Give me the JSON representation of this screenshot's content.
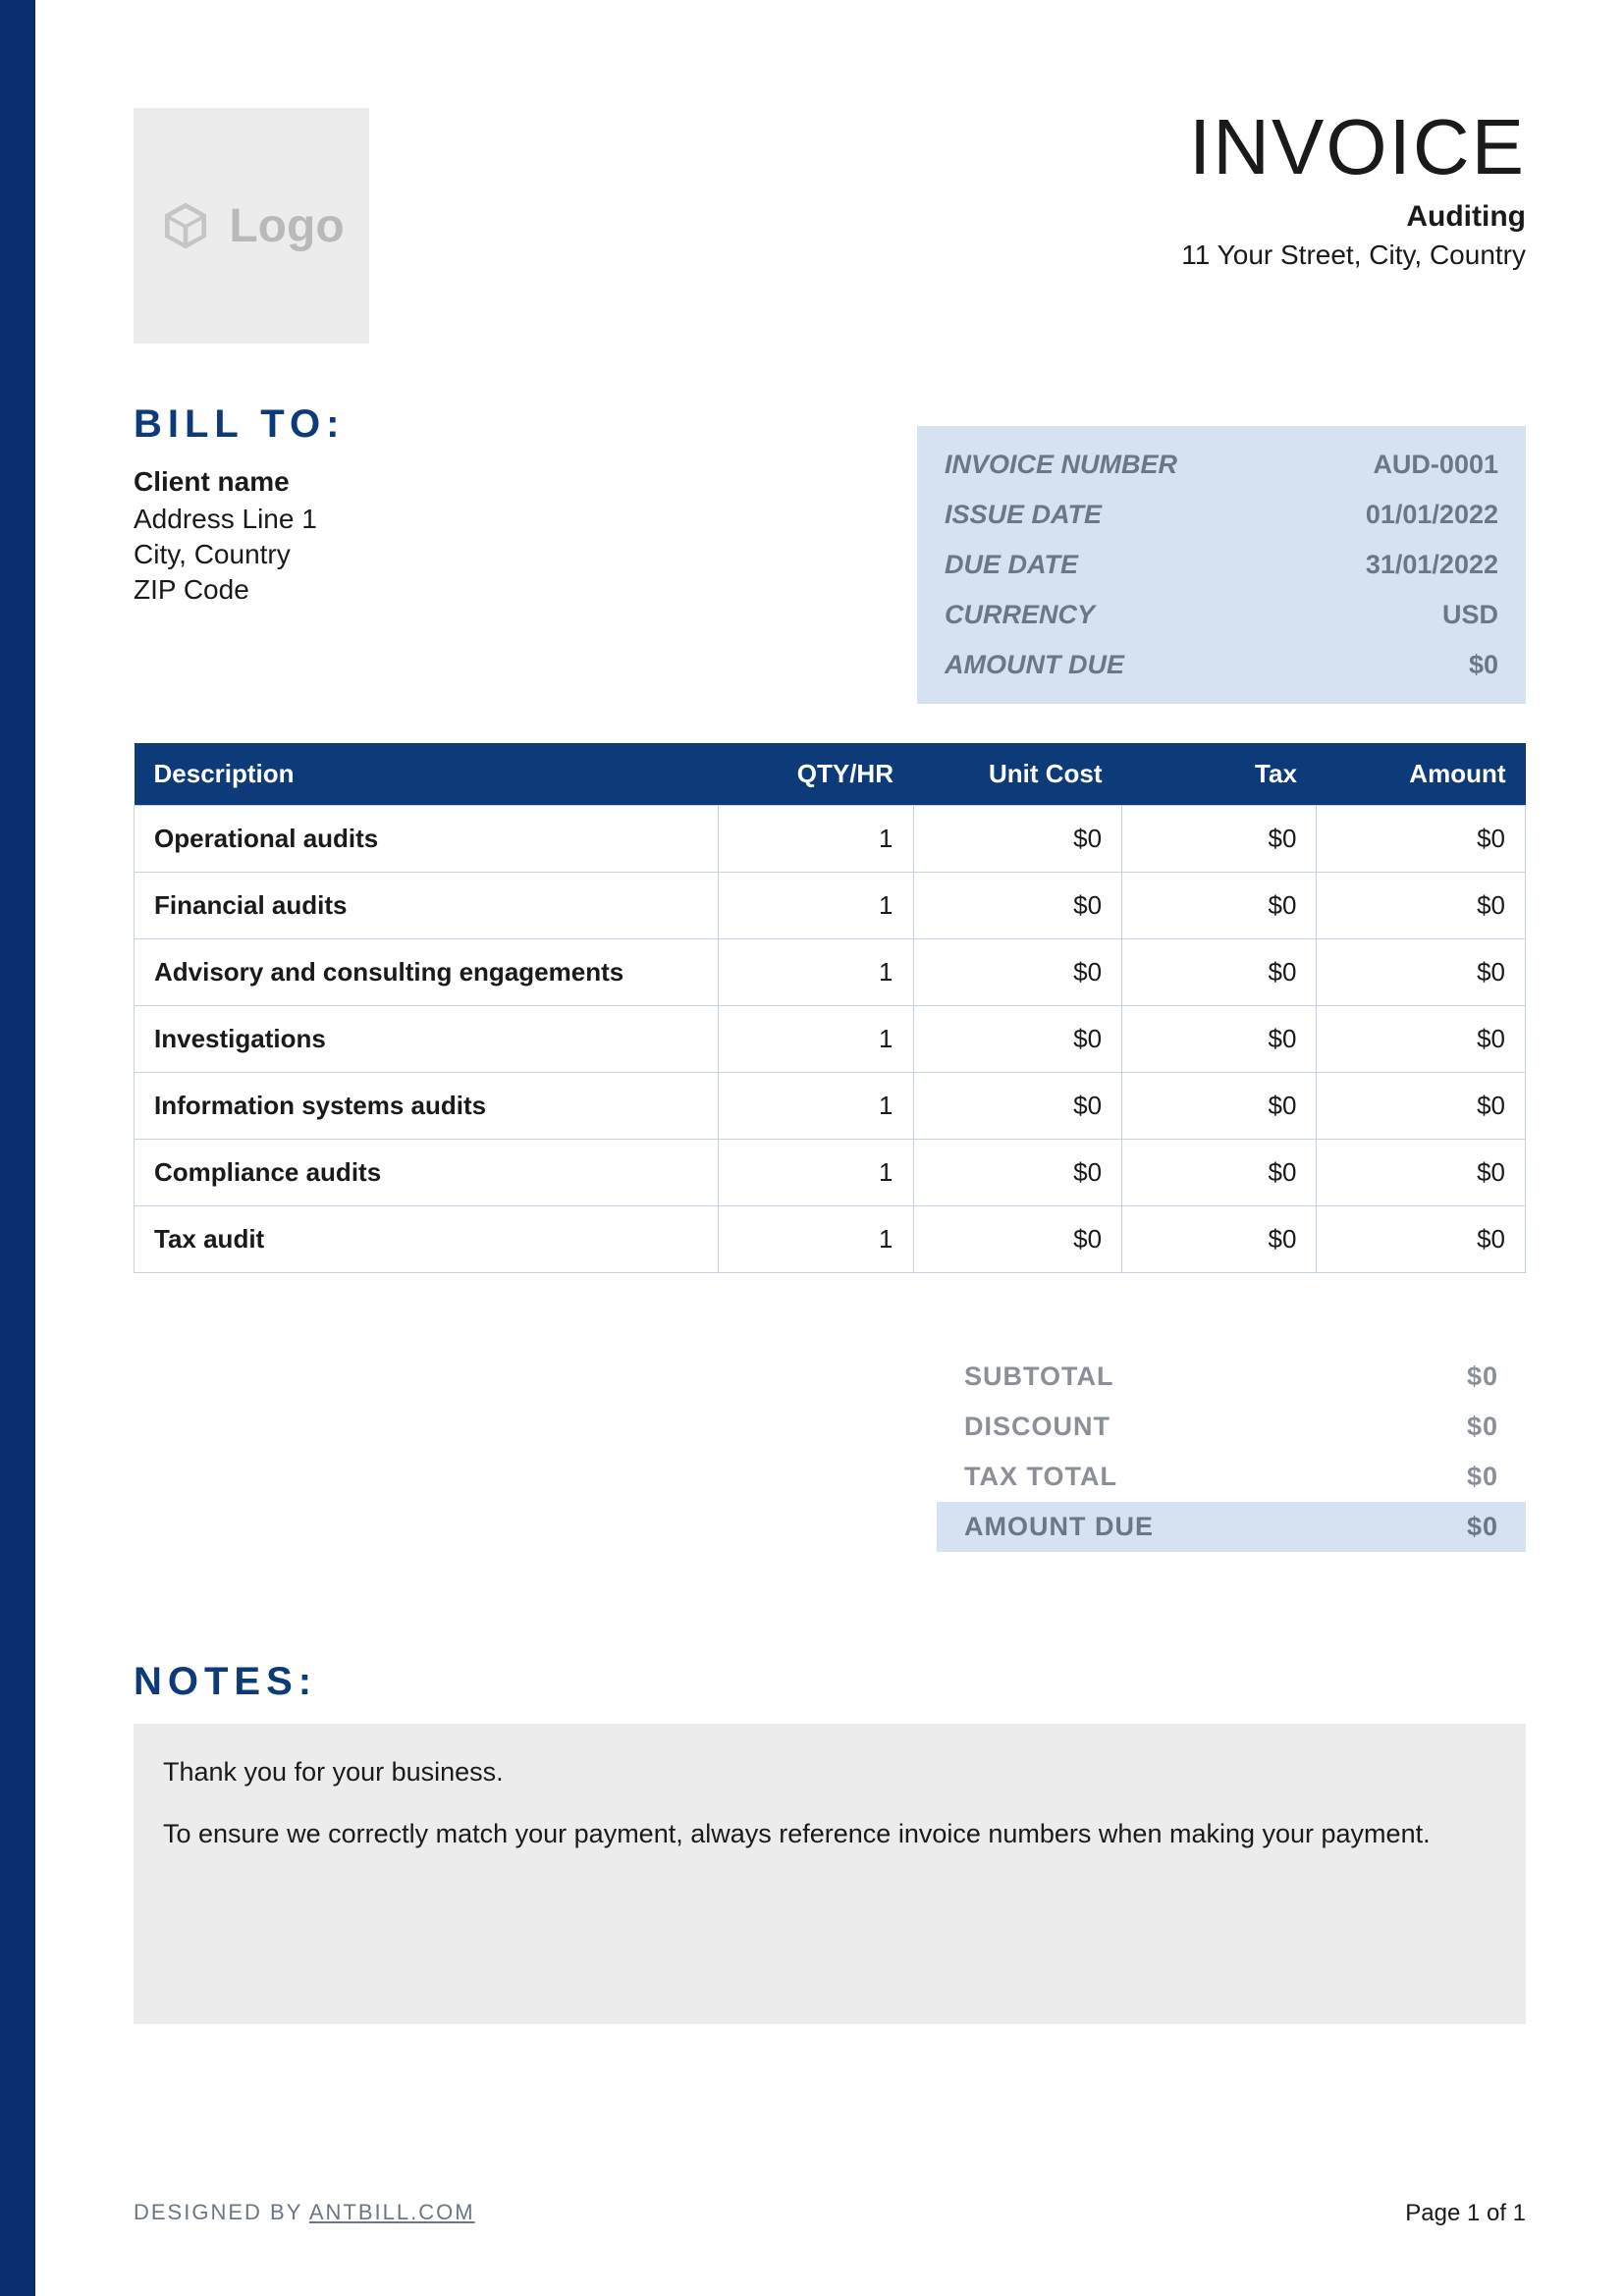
{
  "colors": {
    "accent_bar": "#0b2e6f",
    "header_dark": "#0d3b7a",
    "meta_bg": "#d6e2f1",
    "notes_bg": "#ececec",
    "table_border": "#c5d3e6",
    "muted_text": "#6b7785",
    "totals_text": "#8a8f98",
    "body_text": "#1a1a1a",
    "logo_bg": "#ececec",
    "logo_fg": "#b9b9b9"
  },
  "header": {
    "logo_text": "Logo",
    "title": "INVOICE",
    "company": "Auditing",
    "address": "11 Your Street, City, Country"
  },
  "bill_to": {
    "heading": "BILL TO:",
    "client_name": "Client name",
    "lines": [
      "Address Line 1",
      "City, Country",
      "ZIP Code"
    ]
  },
  "meta": {
    "rows": [
      {
        "label": "INVOICE NUMBER",
        "value": "AUD-0001"
      },
      {
        "label": "ISSUE DATE",
        "value": "01/01/2022"
      },
      {
        "label": "DUE DATE",
        "value": "31/01/2022"
      },
      {
        "label": "CURRENCY",
        "value": "USD"
      },
      {
        "label": "AMOUNT DUE",
        "value": "$0"
      }
    ]
  },
  "table": {
    "columns": [
      "Description",
      "QTY/HR",
      "Unit Cost",
      "Tax",
      "Amount"
    ],
    "column_widths_pct": [
      42,
      14,
      15,
      14,
      15
    ],
    "rows": [
      {
        "desc": "Operational audits",
        "qty": "1",
        "unit": "$0",
        "tax": "$0",
        "amount": "$0"
      },
      {
        "desc": "Financial audits",
        "qty": "1",
        "unit": "$0",
        "tax": "$0",
        "amount": "$0"
      },
      {
        "desc": "Advisory and consulting engagements",
        "qty": "1",
        "unit": "$0",
        "tax": "$0",
        "amount": "$0"
      },
      {
        "desc": "Investigations",
        "qty": "1",
        "unit": "$0",
        "tax": "$0",
        "amount": "$0"
      },
      {
        "desc": "Information systems audits",
        "qty": "1",
        "unit": "$0",
        "tax": "$0",
        "amount": "$0"
      },
      {
        "desc": "Compliance audits",
        "qty": "1",
        "unit": "$0",
        "tax": "$0",
        "amount": "$0"
      },
      {
        "desc": "Tax audit",
        "qty": "1",
        "unit": "$0",
        "tax": "$0",
        "amount": "$0"
      }
    ]
  },
  "totals": {
    "lines": [
      {
        "label": "SUBTOTAL",
        "value": "$0",
        "highlight": false
      },
      {
        "label": "DISCOUNT",
        "value": "$0",
        "highlight": false
      },
      {
        "label": "TAX TOTAL",
        "value": "$0",
        "highlight": false
      },
      {
        "label": "AMOUNT DUE",
        "value": "$0",
        "highlight": true
      }
    ]
  },
  "notes": {
    "heading": "NOTES:",
    "paragraphs": [
      "Thank you for your business.",
      "To ensure we correctly match your payment, always reference invoice numbers when making your payment."
    ]
  },
  "footer": {
    "designed_prefix": "DESIGNED BY ",
    "designed_link": "ANTBILL.COM",
    "page": "Page 1 of 1"
  }
}
